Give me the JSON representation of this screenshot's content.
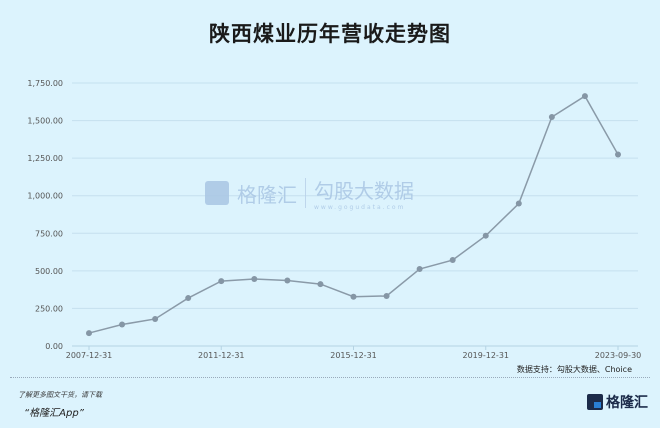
{
  "title": "陕西煤业历年营收走势图",
  "source": "数据支持：勾股大数据、Choice",
  "promo_line1": "了解更多图文干货，请下载",
  "promo_line2": "“格隆汇App”",
  "brand": "格隆汇",
  "watermark": {
    "left": "格隆汇",
    "right": "勾股大数据",
    "right_url": "www.gogudata.com"
  },
  "colors": {
    "background": "#dcf3fd",
    "line": "#8a9aa8",
    "grid": "#c5e0ee"
  },
  "chart_data": {
    "type": "line",
    "title": "陕西煤业历年营收走势图",
    "x": [
      "2007-12-31",
      "2008-12-31",
      "2009-12-31",
      "2010-12-31",
      "2011-12-31",
      "2012-12-31",
      "2013-12-31",
      "2014-12-31",
      "2015-12-31",
      "2016-12-31",
      "2017-12-31",
      "2018-12-31",
      "2019-12-31",
      "2020-12-31",
      "2021-12-31",
      "2022-12-31",
      "2023-09-30"
    ],
    "x_tick_labels": [
      "2007-12-31",
      "2011-12-31",
      "2015-12-31",
      "2019-12-31",
      "2023-09-30"
    ],
    "series": [
      {
        "values": [
          86,
          143,
          180,
          319,
          432,
          446,
          436,
          412,
          328,
          333,
          512,
          572,
          734,
          948,
          1524,
          1663,
          1274
        ]
      }
    ],
    "ylim": [
      0,
      1750
    ],
    "y_tick_labels": [
      "0.00",
      "250.00",
      "500.00",
      "750.00",
      "1,000.00",
      "1,250.00",
      "1,500.00",
      "1,750.00"
    ],
    "grid": true
  }
}
